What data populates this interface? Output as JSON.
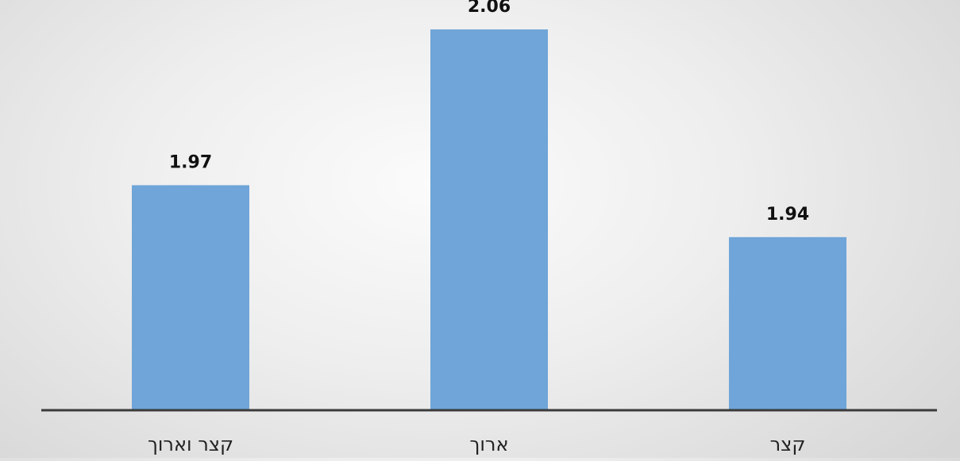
{
  "chart_data": {
    "type": "bar",
    "categories": [
      "קצר",
      "ארוך",
      "קצר וארוך"
    ],
    "values": [
      1.94,
      2.06,
      1.97
    ],
    "value_labels": [
      "1.94",
      "2.06",
      "1.97"
    ],
    "ylim": [
      1.84,
      2.077
    ],
    "grid": false,
    "legend": "none",
    "bar_color": "#6fa5d8",
    "axis_color": "#3b3b3b"
  }
}
